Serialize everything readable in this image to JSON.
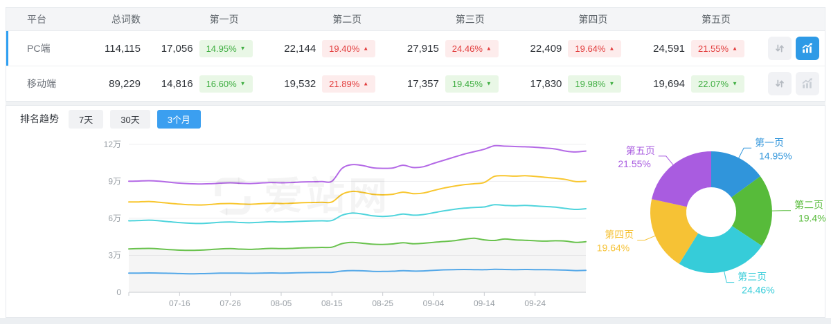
{
  "table": {
    "columns": [
      "平台",
      "总词数",
      "第一页",
      "第二页",
      "第三页",
      "第四页",
      "第五页"
    ],
    "rows": [
      {
        "platform": "PC端",
        "total": "114,115",
        "selected": true,
        "chart_active": true,
        "pages": [
          {
            "count": "17,056",
            "pct": "14.95%",
            "dir": "down"
          },
          {
            "count": "22,144",
            "pct": "19.40%",
            "dir": "up"
          },
          {
            "count": "27,915",
            "pct": "24.46%",
            "dir": "up"
          },
          {
            "count": "22,409",
            "pct": "19.64%",
            "dir": "up"
          },
          {
            "count": "24,591",
            "pct": "21.55%",
            "dir": "up"
          }
        ]
      },
      {
        "platform": "移动端",
        "total": "89,229",
        "selected": false,
        "chart_active": false,
        "pages": [
          {
            "count": "14,816",
            "pct": "16.60%",
            "dir": "down"
          },
          {
            "count": "19,532",
            "pct": "21.89%",
            "dir": "up"
          },
          {
            "count": "17,357",
            "pct": "19.45%",
            "dir": "down"
          },
          {
            "count": "17,830",
            "pct": "19.98%",
            "dir": "down"
          },
          {
            "count": "19,694",
            "pct": "22.07%",
            "dir": "down"
          }
        ]
      }
    ]
  },
  "trend": {
    "title": "排名趋势",
    "tabs": [
      {
        "label": "7天",
        "active": false
      },
      {
        "label": "30天",
        "active": false
      },
      {
        "label": "3个月",
        "active": true
      }
    ]
  },
  "watermark": {
    "text": "爱站网"
  },
  "colors": {
    "row_accent": "#2d9ff2",
    "tab_active": "#3b9ff0",
    "chart_button_active": "#2e9ae6",
    "badge_up_red": "#e23c3c",
    "badge_down_green": "#3fae41"
  },
  "chart_data": [
    {
      "type": "line",
      "title": "排名趋势 (3个月)",
      "x_tick_labels": [
        "07-16",
        "07-26",
        "08-05",
        "08-15",
        "08-25",
        "09-04",
        "09-14",
        "09-24"
      ],
      "x_tick_days": [
        10,
        20,
        30,
        40,
        50,
        60,
        70,
        80
      ],
      "x_day_span": [
        0,
        90
      ],
      "sample_interval_days": 2,
      "y_ticks": [
        "0",
        "3万",
        "6万",
        "9万",
        "12万"
      ],
      "ylim_wan": [
        0,
        12
      ],
      "grid": true,
      "legend": "none",
      "series": [
        {
          "name": "purple",
          "color": "#b46ae6",
          "area": false,
          "values_wan": [
            9.0,
            9.02,
            9.05,
            9.0,
            8.92,
            8.85,
            8.8,
            8.78,
            8.8,
            8.85,
            8.88,
            8.84,
            8.82,
            8.86,
            8.9,
            8.88,
            8.9,
            8.94,
            8.96,
            8.98,
            9.0,
            10.05,
            10.35,
            10.28,
            10.1,
            10.05,
            10.08,
            10.3,
            10.12,
            10.18,
            10.45,
            10.7,
            10.95,
            11.2,
            11.4,
            11.6,
            11.88,
            11.85,
            11.82,
            11.8,
            11.76,
            11.7,
            11.62,
            11.45,
            11.38,
            11.45
          ]
        },
        {
          "name": "yellow",
          "color": "#f8c62e",
          "area": false,
          "values_wan": [
            7.32,
            7.33,
            7.36,
            7.3,
            7.22,
            7.15,
            7.1,
            7.08,
            7.12,
            7.18,
            7.2,
            7.16,
            7.14,
            7.18,
            7.22,
            7.2,
            7.22,
            7.26,
            7.28,
            7.3,
            7.32,
            7.95,
            8.18,
            8.1,
            7.95,
            7.9,
            7.95,
            8.12,
            8.0,
            8.05,
            8.25,
            8.45,
            8.6,
            8.72,
            8.8,
            8.9,
            9.4,
            9.45,
            9.42,
            9.45,
            9.4,
            9.32,
            9.25,
            9.15,
            8.98,
            9.0
          ]
        },
        {
          "name": "cyan",
          "color": "#4fd4dc",
          "area": false,
          "values_wan": [
            5.8,
            5.82,
            5.85,
            5.8,
            5.72,
            5.65,
            5.6,
            5.58,
            5.62,
            5.68,
            5.7,
            5.66,
            5.64,
            5.68,
            5.72,
            5.7,
            5.72,
            5.76,
            5.78,
            5.8,
            5.82,
            6.25,
            6.42,
            6.35,
            6.2,
            6.15,
            6.2,
            6.35,
            6.25,
            6.3,
            6.45,
            6.6,
            6.72,
            6.82,
            6.88,
            6.92,
            7.1,
            7.05,
            7.02,
            7.05,
            7.0,
            6.95,
            6.9,
            6.8,
            6.72,
            6.78
          ]
        },
        {
          "name": "green",
          "color": "#69c24d",
          "area": true,
          "values_wan": [
            3.52,
            3.54,
            3.56,
            3.52,
            3.46,
            3.42,
            3.4,
            3.42,
            3.46,
            3.52,
            3.54,
            3.5,
            3.48,
            3.52,
            3.56,
            3.54,
            3.56,
            3.6,
            3.62,
            3.64,
            3.66,
            3.95,
            4.05,
            3.98,
            3.9,
            3.88,
            3.92,
            4.02,
            3.94,
            3.98,
            4.05,
            4.12,
            4.18,
            4.3,
            4.38,
            4.25,
            4.2,
            4.32,
            4.25,
            4.22,
            4.18,
            4.15,
            4.18,
            4.15,
            4.05,
            4.1
          ]
        },
        {
          "name": "blue",
          "color": "#54a8e8",
          "area": false,
          "values_wan": [
            1.55,
            1.56,
            1.57,
            1.56,
            1.54,
            1.52,
            1.5,
            1.51,
            1.53,
            1.55,
            1.56,
            1.55,
            1.54,
            1.55,
            1.57,
            1.56,
            1.57,
            1.59,
            1.6,
            1.61,
            1.62,
            1.72,
            1.76,
            1.74,
            1.7,
            1.69,
            1.71,
            1.75,
            1.72,
            1.73,
            1.78,
            1.82,
            1.84,
            1.85,
            1.84,
            1.83,
            1.86,
            1.85,
            1.84,
            1.85,
            1.84,
            1.83,
            1.82,
            1.8,
            1.76,
            1.78
          ]
        }
      ]
    },
    {
      "type": "pie",
      "donut": true,
      "start_angle": "top",
      "direction": "clockwise",
      "slices": [
        {
          "label": "第一页",
          "value_pct": 14.95,
          "display": "14.95%",
          "color": "#3095db"
        },
        {
          "label": "第二页",
          "value_pct": 19.4,
          "display": "19.4%",
          "color": "#57bb3a"
        },
        {
          "label": "第三页",
          "value_pct": 24.46,
          "display": "24.46%",
          "color": "#36ccd9"
        },
        {
          "label": "第四页",
          "value_pct": 19.64,
          "display": "19.64%",
          "color": "#f6c235"
        },
        {
          "label": "第五页",
          "value_pct": 21.55,
          "display": "21.55%",
          "color": "#a95ce0"
        }
      ]
    }
  ]
}
